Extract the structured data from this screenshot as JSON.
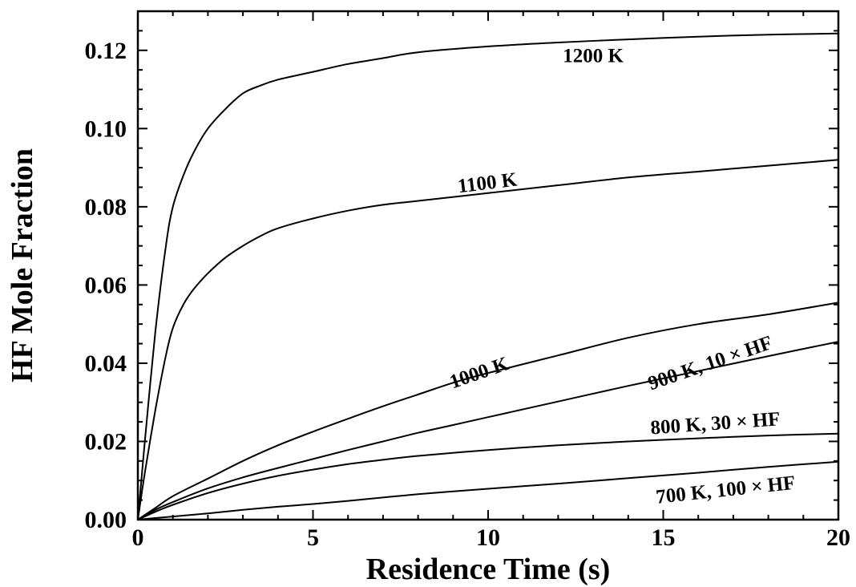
{
  "chart_data": {
    "type": "line",
    "xlabel": "Residence Time (s)",
    "ylabel": "HF Mole Fraction",
    "xlim": [
      0,
      20
    ],
    "ylim": [
      0,
      0.13
    ],
    "x_ticks": [
      "0",
      "5",
      "10",
      "15",
      "20"
    ],
    "y_ticks": [
      "0.00",
      "0.02",
      "0.04",
      "0.06",
      "0.08",
      "0.10",
      "0.12"
    ],
    "grid": false,
    "legend": "none",
    "series": [
      {
        "name": "1200 K",
        "x": [
          0,
          0.2,
          0.5,
          0.8,
          1,
          1.3,
          1.6,
          2,
          2.5,
          3,
          3.5,
          4,
          5,
          6,
          7,
          8,
          10,
          12,
          14,
          16,
          18,
          20
        ],
        "values": [
          0,
          0.02,
          0.048,
          0.07,
          0.08,
          0.088,
          0.094,
          0.1,
          0.105,
          0.109,
          0.111,
          0.1125,
          0.1145,
          0.1165,
          0.118,
          0.1195,
          0.121,
          0.122,
          0.1228,
          0.1235,
          0.124,
          0.1243
        ]
      },
      {
        "name": "1100 K",
        "x": [
          0,
          0.2,
          0.5,
          0.8,
          1,
          1.3,
          1.6,
          2,
          2.5,
          3,
          3.5,
          4,
          5,
          6,
          7,
          8,
          10,
          12,
          14,
          16,
          18,
          20
        ],
        "values": [
          0,
          0.012,
          0.028,
          0.042,
          0.049,
          0.055,
          0.059,
          0.063,
          0.067,
          0.07,
          0.0725,
          0.0745,
          0.077,
          0.079,
          0.0805,
          0.0815,
          0.0835,
          0.0855,
          0.0875,
          0.089,
          0.0905,
          0.092
        ]
      },
      {
        "name": "1000 K",
        "x": [
          0,
          0.5,
          1,
          2,
          3,
          4,
          5,
          6,
          7,
          8,
          9,
          10,
          12,
          14,
          16,
          18,
          20
        ],
        "values": [
          0,
          0.003,
          0.006,
          0.0105,
          0.015,
          0.019,
          0.0225,
          0.0258,
          0.029,
          0.032,
          0.035,
          0.0375,
          0.042,
          0.0465,
          0.05,
          0.0525,
          0.0555
        ]
      },
      {
        "name": "900 K, 10 × HF",
        "x": [
          0,
          0.5,
          1,
          2,
          3,
          4,
          5,
          6,
          7,
          8,
          9,
          10,
          12,
          14,
          16,
          18,
          20
        ],
        "values": [
          0,
          0.0025,
          0.0045,
          0.008,
          0.0108,
          0.0132,
          0.0155,
          0.0178,
          0.02,
          0.0222,
          0.0242,
          0.0262,
          0.0302,
          0.0342,
          0.038,
          0.0418,
          0.0455
        ]
      },
      {
        "name": "800 K, 30 × HF",
        "x": [
          0,
          0.5,
          1,
          2,
          3,
          4,
          5,
          6,
          7,
          8,
          10,
          12,
          14,
          16,
          18,
          20
        ],
        "values": [
          0,
          0.002,
          0.0038,
          0.0068,
          0.0092,
          0.0112,
          0.0128,
          0.0142,
          0.0153,
          0.0163,
          0.0178,
          0.019,
          0.02,
          0.0208,
          0.0215,
          0.022
        ]
      },
      {
        "name": "700 K, 100 × HF",
        "x": [
          0,
          1,
          2,
          3,
          4,
          5,
          6,
          8,
          10,
          12,
          14,
          16,
          18,
          20
        ],
        "values": [
          0,
          0.0008,
          0.0016,
          0.0025,
          0.0033,
          0.004,
          0.0048,
          0.0065,
          0.0079,
          0.0092,
          0.0106,
          0.012,
          0.0135,
          0.0148
        ]
      }
    ],
    "labels": [
      {
        "text": "1200 K",
        "x": 13,
        "y": 0.117,
        "rotate": 0
      },
      {
        "text": "1100 K",
        "x": 10,
        "y": 0.0845,
        "rotate": -7
      },
      {
        "text": "1000 K",
        "x": 9.8,
        "y": 0.036,
        "rotate": -19
      },
      {
        "text": "900 K, 10 × HF",
        "x": 16.4,
        "y": 0.0385,
        "rotate": -19
      },
      {
        "text": "800 K, 30 × HF",
        "x": 16.5,
        "y": 0.023,
        "rotate": -4
      },
      {
        "text": "700 K, 100 × HF",
        "x": 16.8,
        "y": 0.006,
        "rotate": -6
      }
    ]
  }
}
